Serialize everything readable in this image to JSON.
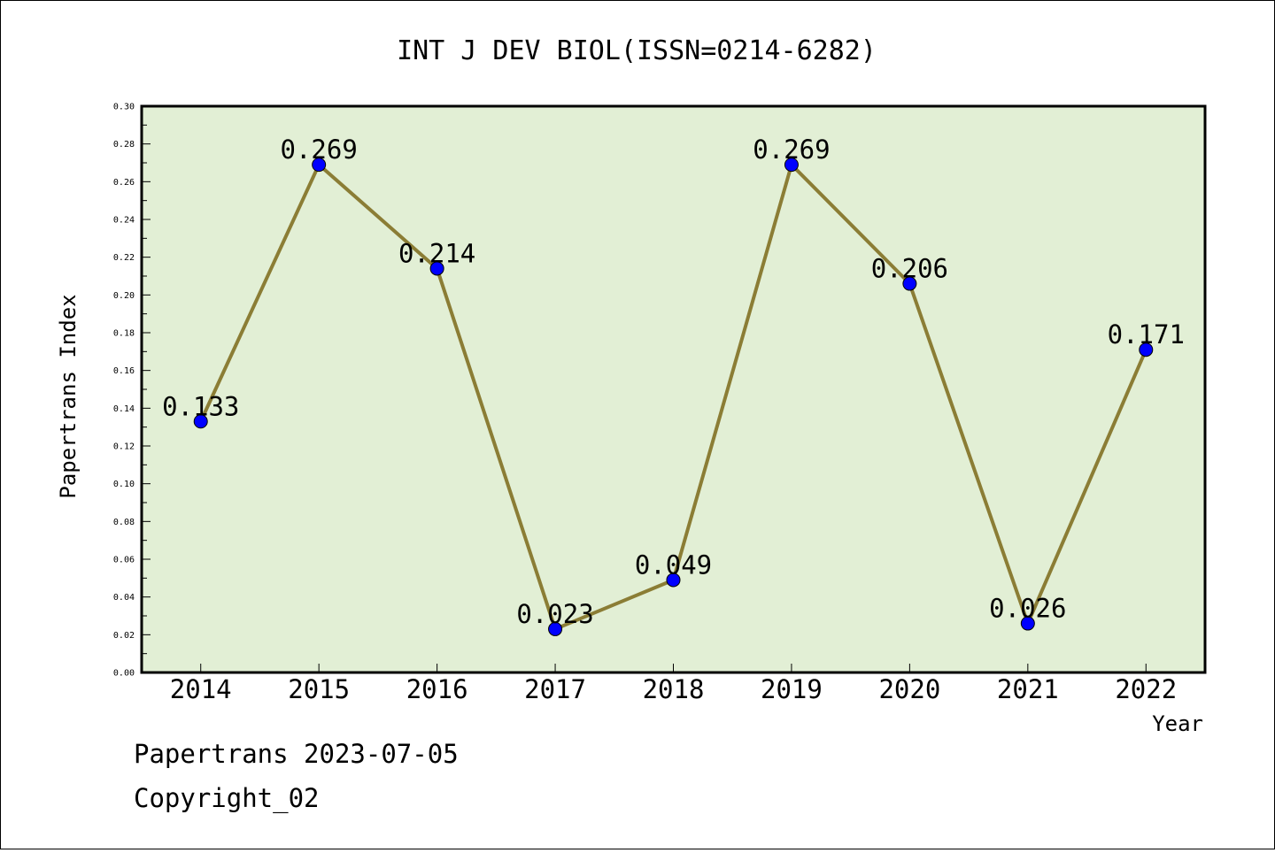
{
  "chart_data": {
    "type": "line",
    "title": "INT J DEV BIOL(ISSN=0214-6282)",
    "xlabel": "Year",
    "ylabel": "Papertrans Index",
    "categories": [
      "2014",
      "2015",
      "2016",
      "2017",
      "2018",
      "2019",
      "2020",
      "2021",
      "2022"
    ],
    "series": [
      {
        "values": [
          0.133,
          0.269,
          0.214,
          0.023,
          0.049,
          0.269,
          0.206,
          0.026,
          0.171
        ],
        "labels": [
          "0.133",
          "0.269",
          "0.214",
          "0.023",
          "0.049",
          "0.269",
          "0.206",
          "0.026",
          "0.171"
        ]
      }
    ],
    "ylim": [
      0,
      0.3
    ],
    "yticks": [
      "0.00",
      "0.02",
      "0.04",
      "0.06",
      "0.08",
      "0.10",
      "0.12",
      "0.14",
      "0.16",
      "0.18",
      "0.20",
      "0.22",
      "0.24",
      "0.26",
      "0.28",
      "0.30"
    ],
    "grid": false,
    "colors": {
      "plot_background": "#e2efd5",
      "line": "#8b7d35",
      "marker": "#0000ff"
    }
  },
  "footer": {
    "line1": "Papertrans 2023-07-05",
    "line2": "Copyright_02"
  }
}
